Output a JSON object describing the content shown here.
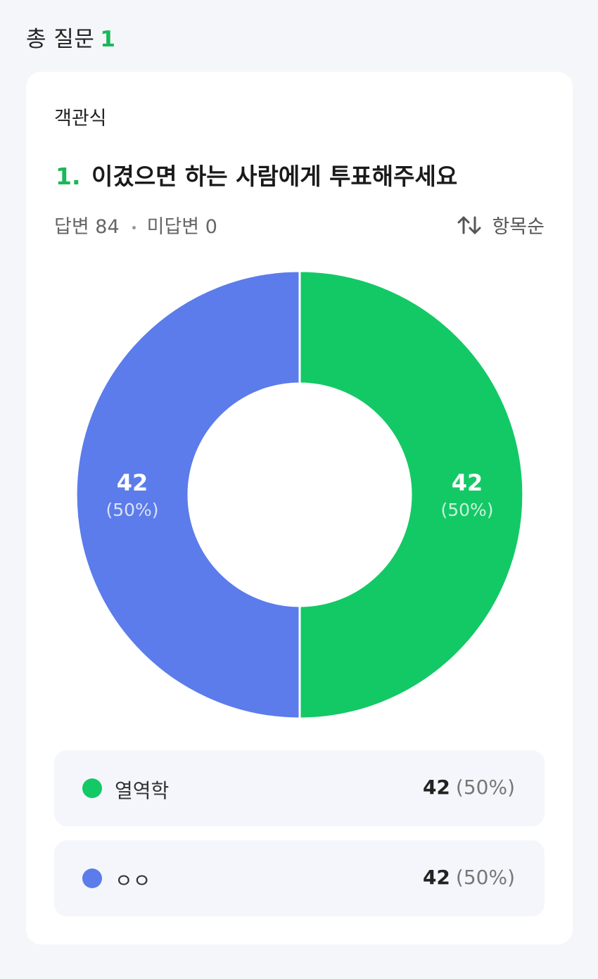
{
  "header": {
    "label": "총 질문",
    "count": "1"
  },
  "question": {
    "type": "객관식",
    "number": "1.",
    "title": "이겼으면 하는 사람에게 투표해주세요",
    "answered_label": "답변 84",
    "unanswered_label": "미답변 0",
    "sort_label": "항목순",
    "sort_icon": "sort-arrows-icon"
  },
  "colors": {
    "green": "#13c965",
    "blue": "#5b7cea"
  },
  "chart_data": {
    "type": "pie",
    "series": [
      {
        "name": "열역학",
        "value": 42,
        "percent": "(50%)",
        "color": "#13c965"
      },
      {
        "name": "ㅇㅇ",
        "value": 42,
        "percent": "(50%)",
        "color": "#5b7cea"
      }
    ]
  },
  "legend": [
    {
      "label": "열역학",
      "value": "42",
      "percent": "(50%)"
    },
    {
      "label": "ㅇㅇ",
      "value": "42",
      "percent": "(50%)"
    }
  ]
}
